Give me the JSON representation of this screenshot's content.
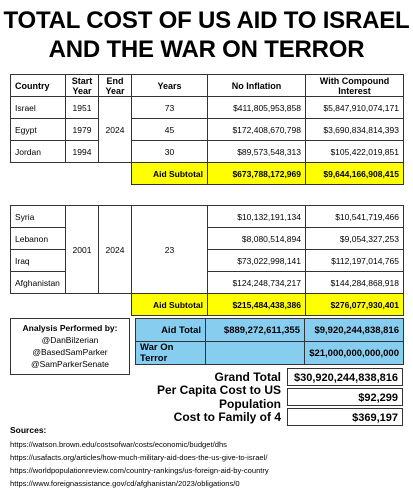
{
  "title_line1": "TOTAL COST OF US AID TO ISRAEL",
  "title_line2": "AND THE WAR ON TERROR",
  "headers": {
    "country": "Country",
    "start_year": "Start Year",
    "end_year": "End Year",
    "years": "Years",
    "no_inflation": "No Inflation",
    "compound": "With Compound Interest"
  },
  "group1": {
    "end_year": "2024",
    "rows": [
      {
        "country": "Israel",
        "start": "1951",
        "years": "73",
        "no_inflation": "$411,805,953,858",
        "compound": "$5,847,910,074,171"
      },
      {
        "country": "Egypt",
        "start": "1979",
        "years": "45",
        "no_inflation": "$172,408,670,798",
        "compound": "$3,690,834,814,393"
      },
      {
        "country": "Jordan",
        "start": "1994",
        "years": "30",
        "no_inflation": "$89,573,548,313",
        "compound": "$105,422,019,851"
      }
    ],
    "subtotal_label": "Aid Subtotal",
    "subtotal_no_inflation": "$673,788,172,969",
    "subtotal_compound": "$9,644,166,908,415"
  },
  "group2": {
    "start_year": "2001",
    "end_year": "2024",
    "years": "23",
    "rows": [
      {
        "country": "Syria",
        "no_inflation": "$10,132,191,134",
        "compound": "$10,541,719,466"
      },
      {
        "country": "Lebanon",
        "no_inflation": "$8,080,514,894",
        "compound": "$9,054,327,253"
      },
      {
        "country": "Iraq",
        "no_inflation": "$73,022,998,141",
        "compound": "$112,197,014,765"
      },
      {
        "country": "Afghanistan",
        "no_inflation": "$124,248,734,217",
        "compound": "$144,284,868,918"
      }
    ],
    "subtotal_label": "Aid Subtotal",
    "subtotal_no_inflation": "$215,484,438,386",
    "subtotal_compound": "$276,077,930,401"
  },
  "analysis": {
    "label": "Analysis Performed by:",
    "handles": [
      "@DanBilzerian",
      "@BasedSamParker",
      "@SamParkerSenate"
    ]
  },
  "aid_total": {
    "label": "Aid Total",
    "no_inflation": "$889,272,611,355",
    "compound": "$9,920,244,838,816"
  },
  "war_on_terror": {
    "label": "War On Terror",
    "compound": "$21,000,000,000,000"
  },
  "totals": [
    {
      "label": "Grand Total",
      "value": "$30,920,244,838,816"
    },
    {
      "label": "Per Capita Cost to US Population",
      "value": "$92,299"
    },
    {
      "label": "Cost to Family of 4",
      "value": "$369,197"
    }
  ],
  "sources": {
    "heading": "Sources:",
    "links": [
      "https://watson.brown.edu/costsofwar/costs/economic/budget/dhs",
      "https://usafacts.org/articles/how-much-military-aid-does-the-us-give-to-israel/",
      "https://worldpopulationreview.com/country-rankings/us-foreign-aid-by-country",
      "https://www.foreignassistance.gov/cd/afghanistan/2023/obligations/0"
    ]
  }
}
